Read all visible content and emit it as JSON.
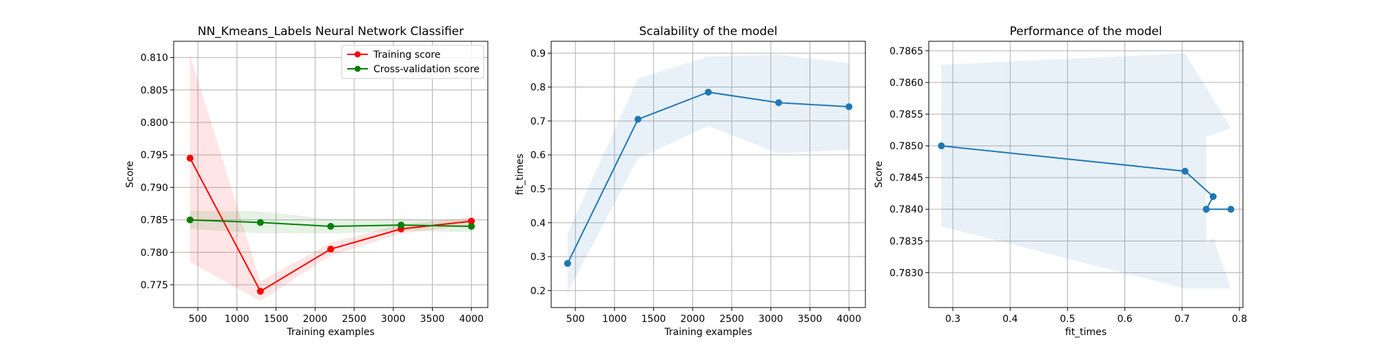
{
  "chart_data": [
    {
      "type": "line",
      "title": "NN_Kmeans_Labels Neural Network Classifier",
      "xlabel": "Training examples",
      "ylabel": "Score",
      "xlim": [
        190,
        4210
      ],
      "ylim": [
        0.7715,
        0.8125
      ],
      "xticks": [
        500,
        1000,
        1500,
        2000,
        2500,
        3000,
        3500,
        4000
      ],
      "xtick_labels": [
        "500",
        "1000",
        "1500",
        "2000",
        "2500",
        "3000",
        "3500",
        "4000"
      ],
      "yticks": [
        0.775,
        0.78,
        0.785,
        0.79,
        0.795,
        0.8,
        0.805,
        0.81
      ],
      "ytick_labels": [
        "0.775",
        "0.780",
        "0.785",
        "0.790",
        "0.795",
        "0.800",
        "0.805",
        "0.810"
      ],
      "grid": true,
      "legend": "top-right",
      "series": [
        {
          "name": "Training score",
          "color": "#ff0000",
          "fill_color": "#ff0000",
          "x": [
            400,
            1300,
            2200,
            3100,
            4000
          ],
          "values": [
            0.7945,
            0.774,
            0.7805,
            0.7836,
            0.7848
          ],
          "band_low": [
            0.7785,
            0.7725,
            0.7795,
            0.7829,
            0.7842
          ],
          "band_high": [
            0.8105,
            0.7755,
            0.7815,
            0.7843,
            0.7854
          ]
        },
        {
          "name": "Cross-validation score",
          "color": "#008000",
          "fill_color": "#008000",
          "x": [
            400,
            1300,
            2200,
            3100,
            4000
          ],
          "values": [
            0.785,
            0.7846,
            0.784,
            0.7842,
            0.784
          ],
          "band_low": [
            0.7836,
            0.7829,
            0.7829,
            0.7833,
            0.7831
          ],
          "band_high": [
            0.7864,
            0.7863,
            0.7851,
            0.7851,
            0.7849
          ]
        }
      ]
    },
    {
      "type": "line",
      "title": "Scalability of the model",
      "xlabel": "Training examples",
      "ylabel": "fit_times",
      "xlim": [
        190,
        4210
      ],
      "ylim": [
        0.15,
        0.935
      ],
      "xticks": [
        500,
        1000,
        1500,
        2000,
        2500,
        3000,
        3500,
        4000
      ],
      "xtick_labels": [
        "500",
        "1000",
        "1500",
        "2000",
        "2500",
        "3000",
        "3500",
        "4000"
      ],
      "yticks": [
        0.2,
        0.3,
        0.4,
        0.5,
        0.6,
        0.7,
        0.8,
        0.9
      ],
      "ytick_labels": [
        "0.2",
        "0.3",
        "0.4",
        "0.5",
        "0.6",
        "0.7",
        "0.8",
        "0.9"
      ],
      "grid": true,
      "series": [
        {
          "color": "#1f77b4",
          "fill_color": "#1f77b4",
          "x": [
            400,
            1300,
            2200,
            3100,
            4000
          ],
          "values": [
            0.28,
            0.705,
            0.785,
            0.754,
            0.742
          ],
          "band_low": [
            0.195,
            0.59,
            0.685,
            0.605,
            0.615
          ],
          "band_high": [
            0.37,
            0.825,
            0.89,
            0.895,
            0.87
          ]
        }
      ]
    },
    {
      "type": "line",
      "title": "Performance of the model",
      "xlabel": "fit_times",
      "ylabel": "Score",
      "xlim": [
        0.258,
        0.806
      ],
      "ylim": [
        0.78245,
        0.78665
      ],
      "xticks": [
        0.3,
        0.4,
        0.5,
        0.6,
        0.7,
        0.8
      ],
      "xtick_labels": [
        "0.3",
        "0.4",
        "0.5",
        "0.6",
        "0.7",
        "0.8"
      ],
      "yticks": [
        0.783,
        0.7835,
        0.784,
        0.7845,
        0.785,
        0.7855,
        0.786,
        0.7865
      ],
      "ytick_labels": [
        "0.7830",
        "0.7835",
        "0.7840",
        "0.7845",
        "0.7850",
        "0.7855",
        "0.7860",
        "0.7865"
      ],
      "grid": true,
      "series": [
        {
          "color": "#1f77b4",
          "fill_color": "#1f77b4",
          "x": [
            0.28,
            0.705,
            0.754,
            0.742,
            0.785
          ],
          "values": [
            0.785,
            0.7846,
            0.7842,
            0.784,
            0.784
          ]
        }
      ],
      "band_polygon": [
        [
          0.28,
          0.78628
        ],
        [
          0.705,
          0.78646
        ],
        [
          0.785,
          0.78528
        ],
        [
          0.754,
          0.78518
        ],
        [
          0.742,
          0.78515
        ],
        [
          0.742,
          0.78345
        ],
        [
          0.754,
          0.78355
        ],
        [
          0.785,
          0.78275
        ],
        [
          0.705,
          0.78275
        ],
        [
          0.28,
          0.78373
        ]
      ]
    }
  ]
}
